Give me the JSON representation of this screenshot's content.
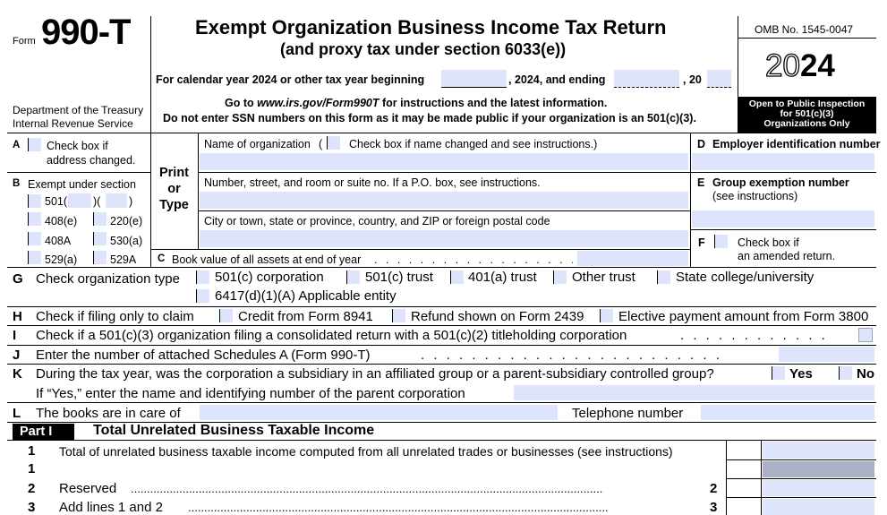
{
  "header": {
    "form_word": "Form",
    "form_number": "990-T",
    "title": "Exempt Organization Business Income Tax Return",
    "subtitle": "(and proxy tax under section 6033(e))",
    "calendar_prefix": "For calendar year 2024 or other tax year beginning",
    "calendar_mid": ", 2024, and ending",
    "calendar_end": ", 20",
    "goto_line_a": "Go to ",
    "goto_url": "www.irs.gov/Form990T",
    "goto_line_b": " for instructions and the latest information.",
    "ssn_warning": "Do not enter SSN numbers on this form as it may be made public if your organization is an 501(c)(3).",
    "dept_line1": "Department of the Treasury",
    "dept_line2": "Internal Revenue Service",
    "omb": "OMB No. 1545-0047",
    "year_outline": "20",
    "year_bold": "24",
    "public_inspection_l1": "Open to Public Inspection",
    "public_inspection_l2": "for 501(c)(3)",
    "public_inspection_l3": "Organizations Only"
  },
  "box_a": {
    "letter": "A",
    "label_l1": "Check box if",
    "label_l2": "address changed."
  },
  "box_b": {
    "letter": "B",
    "label": "Exempt under section",
    "opt_501_prefix": "501(",
    "opt_501_mid": ")(",
    "opt_501_end": ")",
    "opt_408e": "408(e)",
    "opt_220e": "220(e)",
    "opt_408a": "408A",
    "opt_530a": "530(a)",
    "opt_529a": "529(a)",
    "opt_529A": "529A"
  },
  "print_type": {
    "l1": "Print",
    "l2": "or",
    "l3": "Type"
  },
  "org": {
    "name_label": "Name of organization",
    "name_changed_label": "Check box if name changed and see instructions.)",
    "name_paren": "(",
    "street_label": "Number, street, and room or suite no. If a P.O. box, see instructions.",
    "city_label": "City or town, state or province, country, and ZIP or foreign postal code"
  },
  "box_c": {
    "letter": "C",
    "label": "Book value of all assets at end of year"
  },
  "box_d": {
    "letter": "D",
    "label": "Employer identification number"
  },
  "box_e": {
    "letter": "E",
    "label": "Group exemption number",
    "sub": "(see instructions)"
  },
  "box_f": {
    "letter": "F",
    "label_l1": "Check box if",
    "label_l2": "an amended return."
  },
  "line_g": {
    "letter": "G",
    "label": "Check organization type",
    "opts": [
      "501(c) corporation",
      "501(c) trust",
      "401(a) trust",
      "Other trust",
      "State college/university",
      "6417(d)(1)(A) Applicable entity"
    ]
  },
  "line_h": {
    "letter": "H",
    "label": "Check if filing only to claim",
    "opts": [
      "Credit from Form 8941",
      "Refund shown on Form 2439",
      "Elective payment amount from Form 3800"
    ]
  },
  "line_i": {
    "letter": "I",
    "label": "Check if a 501(c)(3) organization filing a consolidated return with a 501(c)(2) titleholding corporation"
  },
  "line_j": {
    "letter": "J",
    "label": "Enter the number of attached Schedules A (Form 990-T)"
  },
  "line_k": {
    "letter": "K",
    "label": "During the tax year, was the corporation a subsidiary in an affiliated group or a parent-subsidiary controlled group?",
    "yes": "Yes",
    "no": "No",
    "followup": "If “Yes,” enter the name and identifying number of the parent corporation"
  },
  "line_l": {
    "letter": "L",
    "label": "The books are in care of",
    "phone_label": "Telephone number"
  },
  "part1": {
    "tag": "Part I",
    "title": "Total Unrelated Business Taxable Income",
    "lines": [
      {
        "num": "1",
        "label": "Total of unrelated business taxable income computed from all unrelated trades or businesses (see instructions)",
        "box": ""
      },
      {
        "num": "1",
        "label": "",
        "box": ""
      },
      {
        "num": "2",
        "label": "Reserved",
        "box": "2"
      },
      {
        "num": "3",
        "label": "Add lines 1 and 2",
        "box": "3"
      }
    ]
  }
}
